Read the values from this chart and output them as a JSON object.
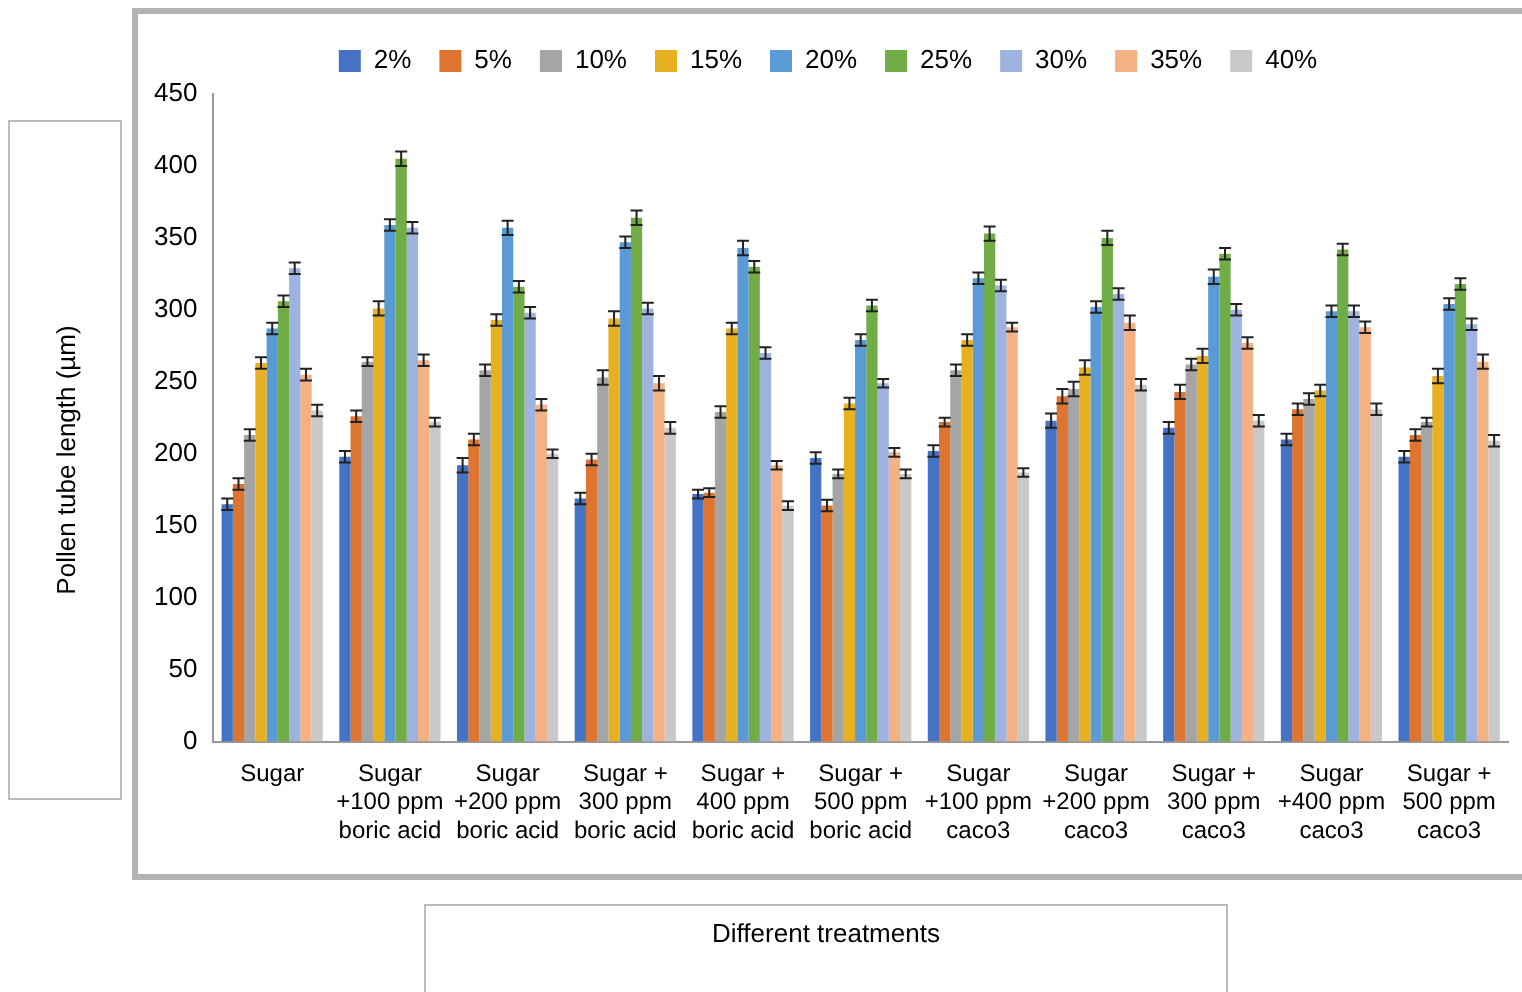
{
  "chart_data": {
    "type": "bar",
    "xlabel": "Different treatments",
    "ylabel": "Pollen tube length (µm)",
    "categories": [
      "Sugar",
      "Sugar +100 ppm boric acid",
      "Sugar +200 ppm boric acid",
      "Sugar + 300 ppm boric acid",
      "Sugar + 400 ppm boric acid",
      "Sugar + 500 ppm boric acid",
      "Sugar +100 ppm caco3",
      "Sugar +200 ppm caco3",
      "Sugar + 300 ppm caco3",
      "Sugar +400 ppm caco3",
      "Sugar + 500 ppm caco3"
    ],
    "series": [
      {
        "name": "2%",
        "color": "#4472c4",
        "values": [
          165,
          198,
          192,
          169,
          172,
          197,
          202,
          223,
          218,
          210,
          198
        ],
        "errors": [
          4,
          4,
          5,
          4,
          3,
          4,
          4,
          5,
          4,
          4,
          4
        ]
      },
      {
        "name": "5%",
        "color": "#dd7530",
        "values": [
          179,
          226,
          210,
          196,
          173,
          164,
          222,
          240,
          243,
          231,
          213
        ],
        "errors": [
          4,
          4,
          4,
          4,
          3,
          4,
          3,
          5,
          5,
          4,
          4
        ]
      },
      {
        "name": "10%",
        "color": "#a5a5a5",
        "values": [
          213,
          264,
          258,
          253,
          229,
          186,
          258,
          245,
          262,
          238,
          222
        ],
        "errors": [
          4,
          3,
          4,
          5,
          4,
          3,
          4,
          5,
          4,
          4,
          3
        ]
      },
      {
        "name": "15%",
        "color": "#e6b020",
        "values": [
          263,
          301,
          293,
          294,
          287,
          235,
          279,
          260,
          268,
          244,
          254
        ],
        "errors": [
          4,
          5,
          4,
          5,
          4,
          4,
          4,
          5,
          5,
          4,
          5
        ]
      },
      {
        "name": "20%",
        "color": "#5b9bd5",
        "values": [
          287,
          359,
          357,
          347,
          343,
          279,
          322,
          302,
          323,
          299,
          304
        ],
        "errors": [
          4,
          4,
          5,
          4,
          5,
          4,
          4,
          4,
          5,
          4,
          4
        ]
      },
      {
        "name": "25%",
        "color": "#70ad47",
        "values": [
          306,
          405,
          316,
          364,
          330,
          303,
          353,
          350,
          339,
          342,
          318
        ],
        "errors": [
          4,
          5,
          4,
          5,
          4,
          4,
          5,
          5,
          4,
          4,
          4
        ]
      },
      {
        "name": "30%",
        "color": "#9fb3e0",
        "values": [
          329,
          357,
          298,
          301,
          270,
          249,
          317,
          311,
          300,
          299,
          290
        ],
        "errors": [
          4,
          4,
          4,
          4,
          4,
          3,
          4,
          4,
          4,
          4,
          4
        ]
      },
      {
        "name": "35%",
        "color": "#f4b183",
        "values": [
          255,
          265,
          234,
          249,
          192,
          201,
          288,
          291,
          277,
          288,
          264
        ],
        "errors": [
          4,
          4,
          4,
          5,
          3,
          3,
          3,
          5,
          4,
          4,
          5
        ]
      },
      {
        "name": "40%",
        "color": "#c9c9c9",
        "values": [
          230,
          222,
          200,
          218,
          164,
          186,
          187,
          248,
          223,
          231,
          209
        ],
        "errors": [
          4,
          3,
          3,
          4,
          3,
          3,
          3,
          4,
          4,
          4,
          4
        ]
      }
    ],
    "ylim": [
      0,
      450
    ],
    "yticks": [
      0,
      50,
      100,
      150,
      200,
      250,
      300,
      350,
      400,
      450
    ],
    "grid": false,
    "legend": "top"
  }
}
